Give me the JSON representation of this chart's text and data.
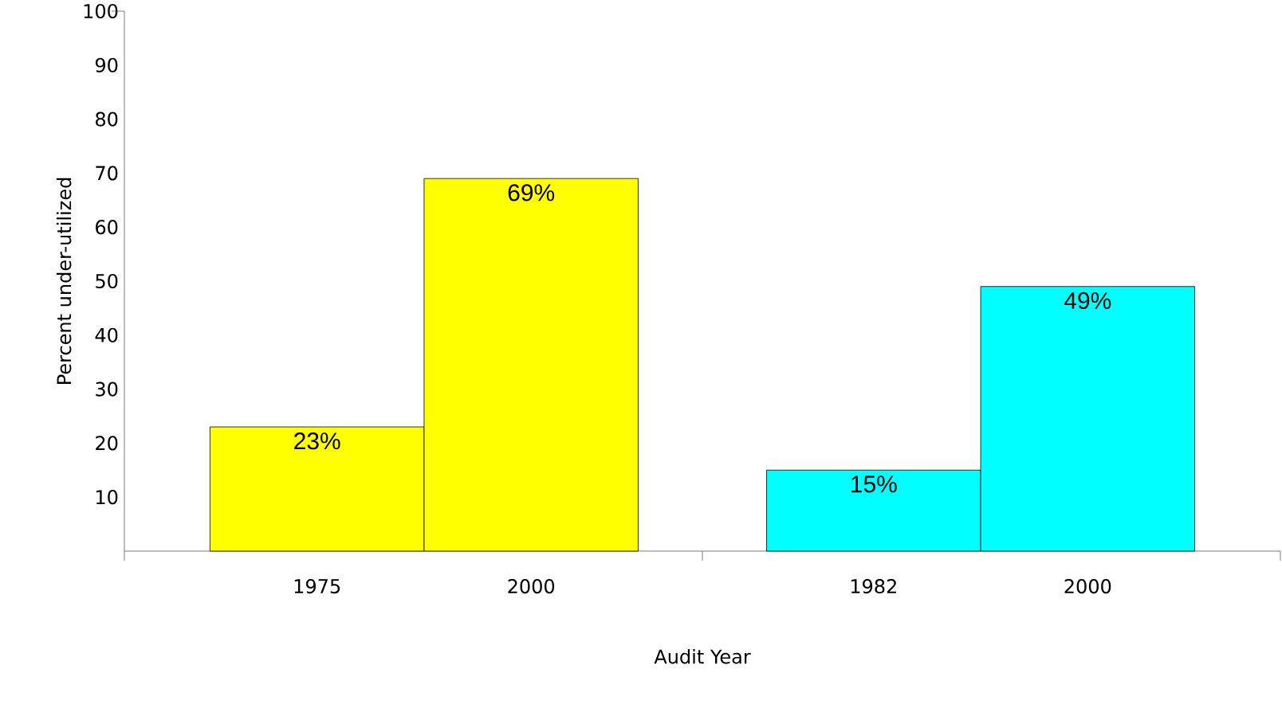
{
  "chart_data": {
    "type": "bar",
    "xlabel": "Audit Year",
    "ylabel": "Percent  under-utilized",
    "categories": [
      "1975",
      "2000",
      "1982",
      "2000"
    ],
    "values": [
      23,
      69,
      15,
      49
    ],
    "colors": [
      "#ffff00",
      "#ffff00",
      "#00ffff",
      "#00ffff"
    ],
    "value_labels": [
      "23%",
      "69%",
      "15%",
      "49%"
    ],
    "ylim": [
      0,
      100
    ],
    "yticks": [
      10,
      20,
      30,
      40,
      50,
      60,
      70,
      80,
      90,
      100
    ],
    "grid": false
  }
}
